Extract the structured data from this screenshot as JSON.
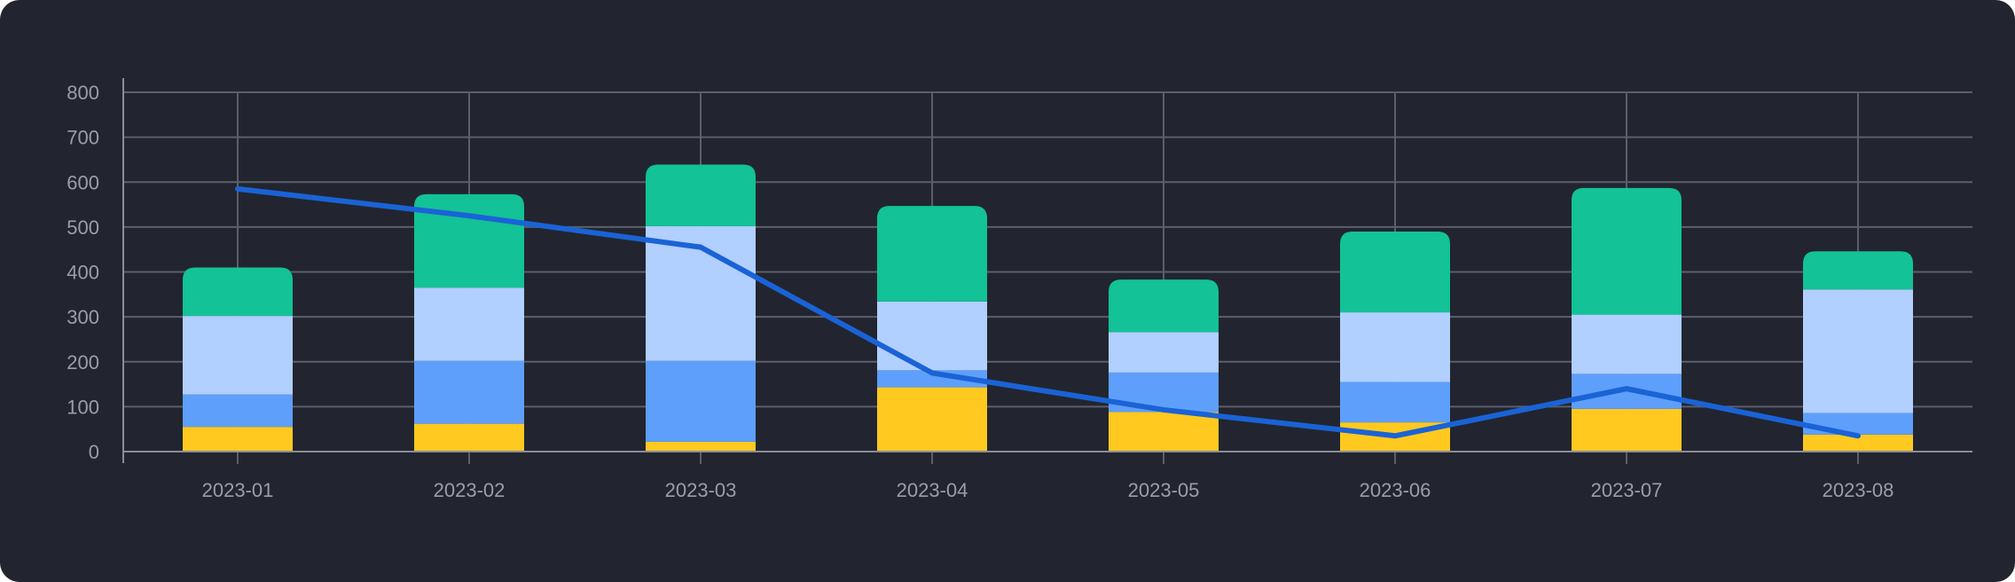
{
  "colors": {
    "background": "#22252f",
    "grid": "#5b5f6b",
    "axis": "#8a8e99",
    "tick_text": "#9a9ea9",
    "line": "#1a63d6"
  },
  "chart_data": {
    "type": "bar",
    "stacked": true,
    "categories": [
      "2023-01",
      "2023-02",
      "2023-03",
      "2023-04",
      "2023-05",
      "2023-06",
      "2023-07",
      "2023-08"
    ],
    "ylim": [
      0,
      800
    ],
    "yticks": [
      "0",
      "100",
      "200",
      "300",
      "400",
      "500",
      "600",
      "700",
      "800"
    ],
    "grid": true,
    "legend": "none",
    "series": [
      {
        "type": "bar",
        "color": "#ffc91f",
        "values": [
          55,
          62,
          22,
          143,
          88,
          65,
          95,
          38
        ]
      },
      {
        "type": "bar",
        "color": "#5e9ffb",
        "values": [
          72,
          140,
          180,
          38,
          88,
          90,
          78,
          48
        ]
      },
      {
        "type": "bar",
        "color": "#b1cfff",
        "values": [
          175,
          163,
          300,
          153,
          90,
          155,
          132,
          275
        ]
      },
      {
        "type": "bar",
        "color": "#13c296",
        "values": [
          108,
          208,
          137,
          213,
          117,
          180,
          282,
          85
        ]
      },
      {
        "type": "line",
        "color": "#1a63d6",
        "values": [
          585,
          525,
          455,
          175,
          93,
          35,
          140,
          35
        ]
      }
    ]
  }
}
